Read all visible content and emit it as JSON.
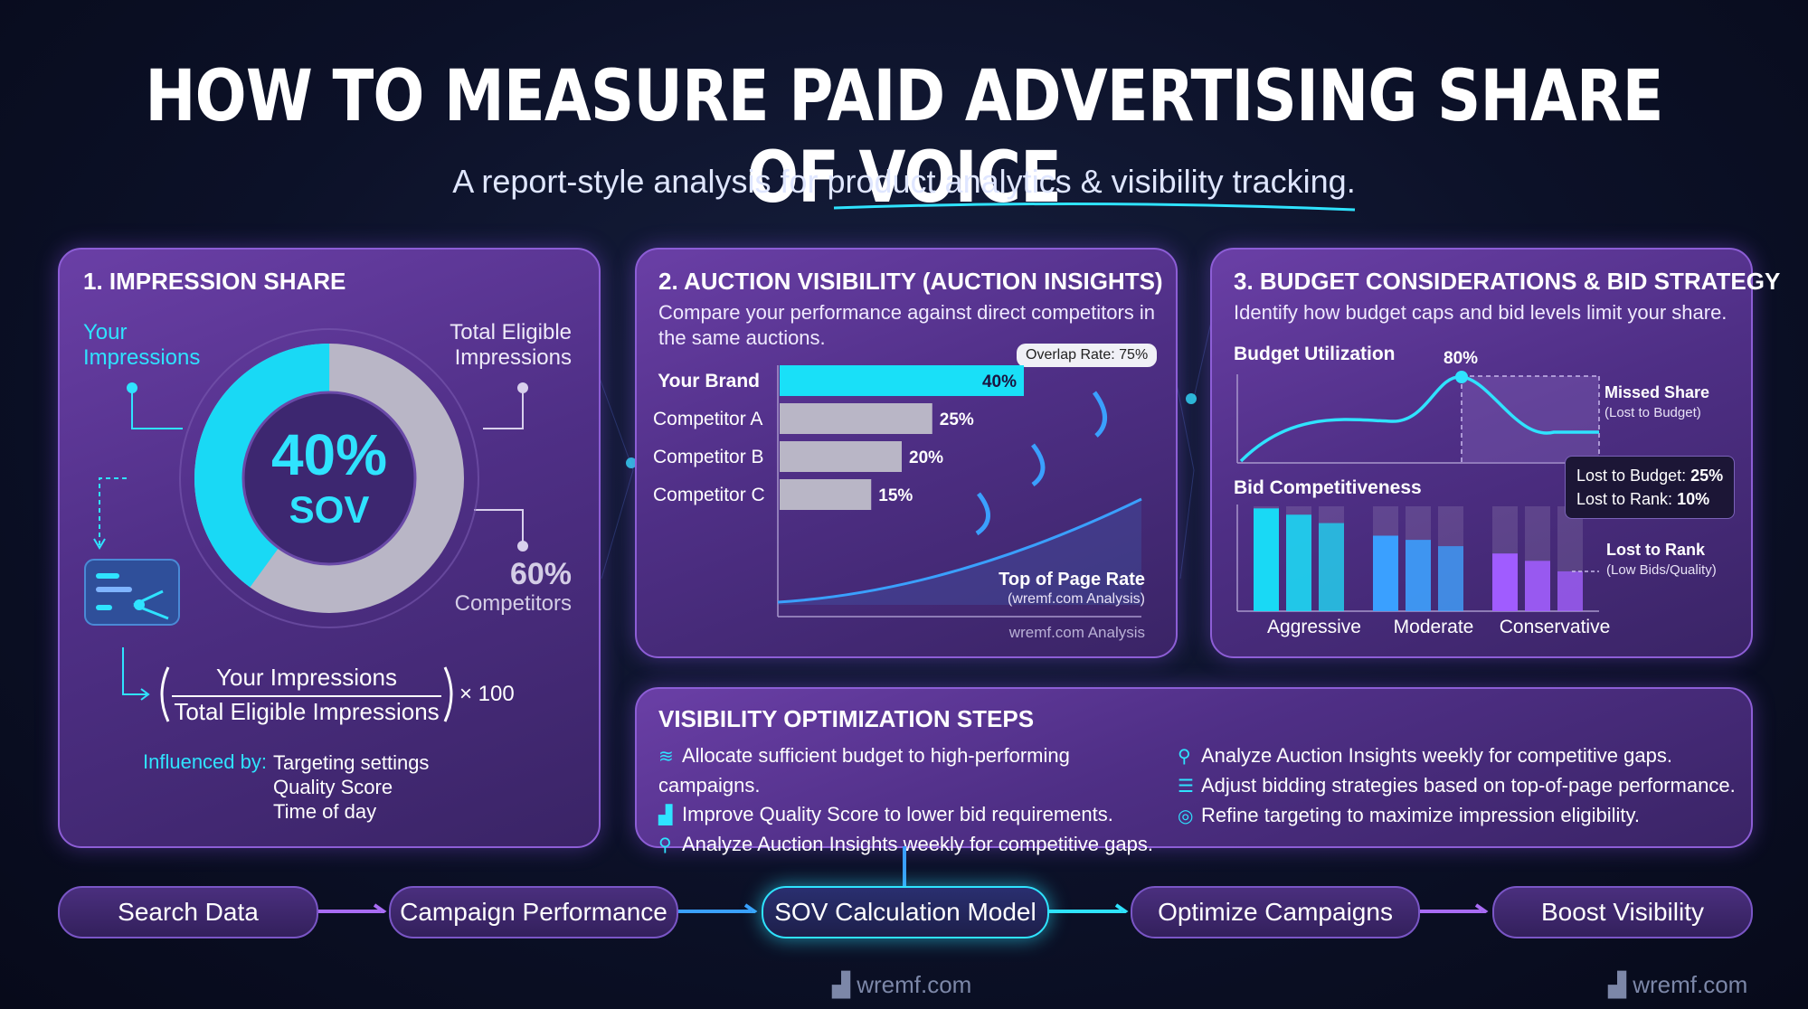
{
  "title": "HOW TO MEASURE PAID ADVERTISING SHARE OF VOICE",
  "subtitle_prefix": "A report-style analysis for ",
  "subtitle_highlight": "product analytics & visibility tracking.",
  "panel1": {
    "heading": "1. IMPRESSION SHARE",
    "your_impressions_line1": "Your",
    "your_impressions_line2": "Impressions",
    "total_eligible_line1": "Total Eligible",
    "total_eligible_line2": "Impressions",
    "sov_value": "40%",
    "sov_label": "SOV",
    "competitors_value": "60%",
    "competitors_label": "Competitors",
    "formula_numerator": "Your Impressions",
    "formula_denominator": "Total Eligible Impressions",
    "formula_multiplier": "× 100",
    "influenced_label": "Influenced by:",
    "influences": [
      "Targeting settings",
      "Quality Score",
      "Time of day"
    ],
    "donut": {
      "your_share": 40,
      "competitors_share": 60
    }
  },
  "panel2": {
    "heading": "2. AUCTION VISIBILITY (AUCTION INSIGHTS)",
    "desc_line1": "Compare your performance against direct competitors in",
    "desc_line2": "the same auctions.",
    "overlap_tag": "Overlap Rate: 75%",
    "top_of_page_label": "Top of Page Rate",
    "top_of_page_sub": "(wremf.com Analysis)",
    "footer": "wremf.com Analysis",
    "chart_data": {
      "type": "bar",
      "categories": [
        "Your Brand",
        "Competitor A",
        "Competitor B",
        "Competitor C"
      ],
      "values": [
        40,
        25,
        20,
        15
      ],
      "value_labels": [
        "40%",
        "25%",
        "20%",
        "15%"
      ],
      "xlim": [
        0,
        45
      ]
    }
  },
  "panel3": {
    "heading": "3. BUDGET CONSIDERATIONS & BID STRATEGY",
    "desc": "Identify how budget caps and bid levels limit your share.",
    "budget_label": "Budget Utilization",
    "peak_label": "80%",
    "missed_share": "Missed Share",
    "missed_share_sub": "(Lost to Budget)",
    "lost_budget_text": "Lost to Budget: ",
    "lost_budget_value": "25%",
    "lost_rank_text": "Lost to Rank: ",
    "lost_rank_value": "10%",
    "bid_label": "Bid Competitiveness",
    "lost_to_rank": "Lost to Rank",
    "lost_to_rank_sub": "(Low Bids/Quality)",
    "chart_data": {
      "type": "bar",
      "categories": [
        "Aggressive",
        "Moderate",
        "Conservative"
      ],
      "series": [
        {
          "values": [
            0.98,
            0.72,
            0.55
          ]
        },
        {
          "values": [
            0.92,
            0.68,
            0.48
          ]
        },
        {
          "values": [
            0.84,
            0.62,
            0.38
          ]
        }
      ],
      "colors": [
        "#19d9f5",
        "#3aa0ff",
        "#a05cff"
      ]
    }
  },
  "steps": {
    "heading": "VISIBILITY OPTIMIZATION STEPS",
    "left": [
      {
        "icon": "coins-icon",
        "glyph": "≋",
        "text": "Allocate sufficient budget to high-performing campaigns."
      },
      {
        "icon": "bar-growth-icon",
        "glyph": "▟",
        "text": "Improve Quality Score to lower bid requirements."
      },
      {
        "icon": "magnifier-icon",
        "glyph": "⚲",
        "text": "Analyze Auction Insights weekly for competitive gaps."
      }
    ],
    "right": [
      {
        "icon": "magnifier-icon",
        "glyph": "⚲",
        "text": "Analyze Auction Insights weekly for competitive gaps."
      },
      {
        "icon": "sliders-icon",
        "glyph": "☰",
        "text": "Adjust bidding strategies based on top-of-page performance."
      },
      {
        "icon": "target-icon",
        "glyph": "◎",
        "text": "Refine targeting to maximize impression eligibility."
      }
    ]
  },
  "flow": [
    "Search Data",
    "Campaign Performance",
    "SOV Calculation Model",
    "Optimize Campaigns",
    "Boost Visibility"
  ],
  "watermark": "wremf.com",
  "colors": {
    "cyan": "#2fe3ff",
    "purple": "#8d5ed6",
    "grey_bar": "#b9b6c6"
  }
}
